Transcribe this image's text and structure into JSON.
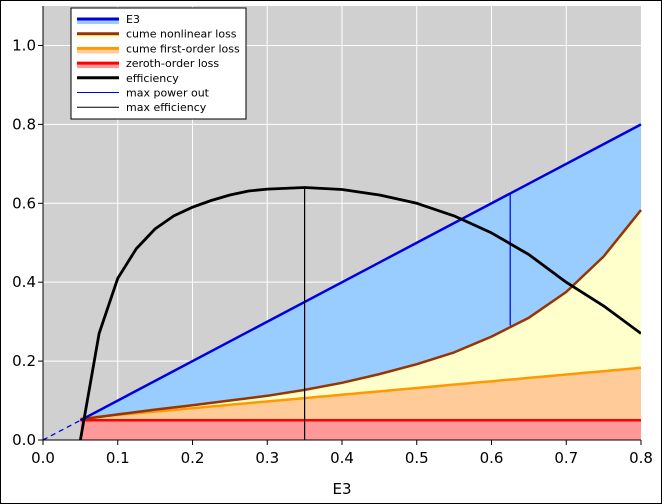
{
  "chart_data": {
    "type": "area",
    "title": "",
    "xlabel": "E3",
    "ylabel": "",
    "xlim": [
      0.0,
      0.8
    ],
    "ylim": [
      0.0,
      1.1
    ],
    "grid": true,
    "legend_position": "top-left",
    "x_ticks": [
      "0.0",
      "0.1",
      "0.2",
      "0.3",
      "0.4",
      "0.5",
      "0.6",
      "0.7",
      "0.8"
    ],
    "y_ticks": [
      "0.0",
      "0.2",
      "0.4",
      "0.6",
      "0.8",
      "1.0"
    ],
    "colors": {
      "plot_background": "#d0d0d0",
      "outer_background": "#ffffff",
      "e3_line": "#0000dd",
      "e3_fill": "#99ccff",
      "nonlinear_line": "#993300",
      "nonlinear_fill": "#ffffcc",
      "first_order_line": "#ff9900",
      "first_order_fill": "#ffcc99",
      "zeroth_order_line": "#ff0000",
      "zeroth_order_fill": "#ff9999",
      "efficiency_line": "#000000",
      "max_power_line": "#0000dd",
      "max_efficiency_line": "#000000"
    },
    "series": [
      {
        "name": "E3",
        "x": [
          0.0,
          0.05,
          0.8
        ],
        "y": [
          0.0,
          0.05,
          0.8
        ],
        "dashed_until_x": 0.05
      },
      {
        "name": "cume nonlinear loss",
        "x": [
          0.05,
          0.1,
          0.15,
          0.2,
          0.25,
          0.3,
          0.35,
          0.4,
          0.45,
          0.5,
          0.55,
          0.6,
          0.65,
          0.7,
          0.75,
          0.8
        ],
        "y": [
          0.052,
          0.065,
          0.077,
          0.088,
          0.1,
          0.112,
          0.127,
          0.145,
          0.167,
          0.192,
          0.222,
          0.262,
          0.31,
          0.375,
          0.465,
          0.583
        ]
      },
      {
        "name": "cume first-order loss",
        "x": [
          0.05,
          0.8
        ],
        "y": [
          0.055,
          0.183
        ]
      },
      {
        "name": "zeroth-order loss",
        "x": [
          0.05,
          0.8
        ],
        "y": [
          0.05,
          0.05
        ]
      },
      {
        "name": "efficiency",
        "x": [
          0.05,
          0.063,
          0.075,
          0.1,
          0.125,
          0.15,
          0.175,
          0.2,
          0.225,
          0.25,
          0.275,
          0.3,
          0.35,
          0.4,
          0.45,
          0.5,
          0.55,
          0.6,
          0.65,
          0.7,
          0.75,
          0.8
        ],
        "y": [
          0.0,
          0.14,
          0.27,
          0.41,
          0.485,
          0.535,
          0.568,
          0.59,
          0.607,
          0.621,
          0.631,
          0.636,
          0.64,
          0.635,
          0.621,
          0.6,
          0.568,
          0.525,
          0.47,
          0.4,
          0.34,
          0.27
        ]
      },
      {
        "name": "max power out",
        "x": [
          0.625,
          0.625
        ],
        "y": [
          0.29,
          0.625
        ]
      },
      {
        "name": "max efficiency",
        "x": [
          0.35,
          0.35
        ],
        "y": [
          0.0,
          0.64
        ]
      }
    ],
    "legend": [
      {
        "label": "E3",
        "style": "band",
        "color_key": "e3_line",
        "fill_key": "e3_fill"
      },
      {
        "label": "cume nonlinear loss",
        "style": "band",
        "color_key": "nonlinear_line",
        "fill_key": "nonlinear_fill"
      },
      {
        "label": "cume first-order loss",
        "style": "band",
        "color_key": "first_order_line",
        "fill_key": "first_order_fill"
      },
      {
        "label": "zeroth-order loss",
        "style": "band",
        "color_key": "zeroth_order_line",
        "fill_key": "zeroth_order_fill"
      },
      {
        "label": "efficiency",
        "style": "thick",
        "color_key": "efficiency_line"
      },
      {
        "label": "max power out",
        "style": "thin",
        "color_key": "max_power_line"
      },
      {
        "label": "max efficiency",
        "style": "thin",
        "color_key": "max_efficiency_line"
      }
    ]
  }
}
